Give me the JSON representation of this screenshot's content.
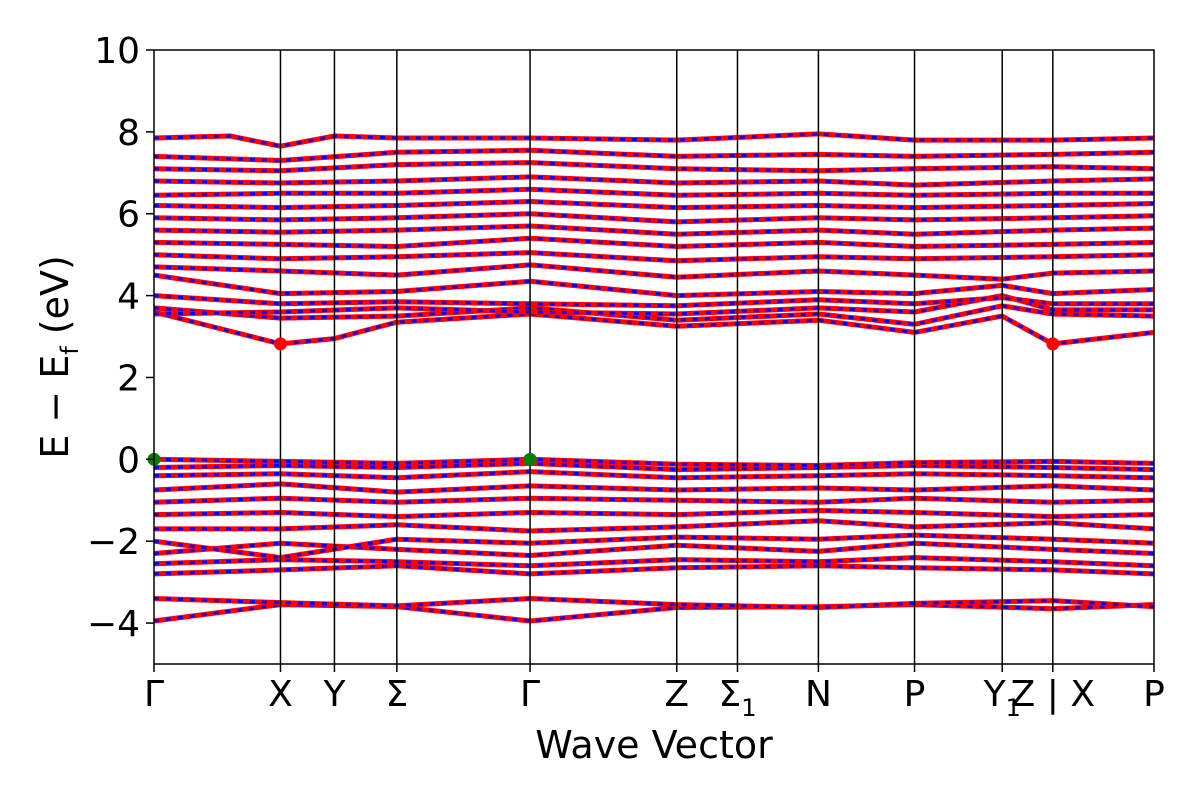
{
  "chart_data": {
    "type": "line",
    "title": "",
    "xlabel": "Wave Vector",
    "ylabel": "E − E",
    "ylabel_subscript": "f",
    "ylabel_unit": "(eV)",
    "ylim": [
      -5,
      10
    ],
    "y_ticks": [
      -4,
      -2,
      0,
      2,
      4,
      6,
      8,
      10
    ],
    "y_tick_labels": [
      "−4",
      "−2",
      "0",
      "2",
      "4",
      "6",
      "8",
      "10"
    ],
    "x_range": [
      0,
      5.93
    ],
    "k_points": [
      {
        "x": 0.0,
        "label": "Γ"
      },
      {
        "x": 0.75,
        "label": "X"
      },
      {
        "x": 1.07,
        "label": "Y"
      },
      {
        "x": 1.44,
        "label": "Σ"
      },
      {
        "x": 2.23,
        "label": "Γ"
      },
      {
        "x": 3.1,
        "label": "Z"
      },
      {
        "x": 3.46,
        "label": "Σ",
        "subscript": "1"
      },
      {
        "x": 3.94,
        "label": "N"
      },
      {
        "x": 4.51,
        "label": "P"
      },
      {
        "x": 5.03,
        "label": "Y",
        "subscript": "1"
      },
      {
        "x": 5.33,
        "label": "Z | X"
      },
      {
        "x": 5.93,
        "label": "P"
      }
    ],
    "grid": false,
    "legend": "none",
    "colors": {
      "spin_up": "#ff0000",
      "spin_down": "#0000ff",
      "vbm": "#008000",
      "cbm": "#ff0000"
    },
    "series": [
      {
        "values": [
          [
            0,
            -3.95
          ],
          [
            0.75,
            -3.55
          ],
          [
            1.44,
            -3.6
          ],
          [
            2.23,
            -3.95
          ],
          [
            3.1,
            -3.62
          ],
          [
            3.94,
            -3.6
          ],
          [
            4.51,
            -3.55
          ],
          [
            5.33,
            -3.65
          ],
          [
            5.93,
            -3.55
          ]
        ]
      },
      {
        "values": [
          [
            0,
            -3.4
          ],
          [
            0.75,
            -3.5
          ],
          [
            1.44,
            -3.58
          ],
          [
            2.23,
            -3.4
          ],
          [
            3.1,
            -3.55
          ],
          [
            3.94,
            -3.62
          ],
          [
            4.51,
            -3.52
          ],
          [
            5.33,
            -3.45
          ],
          [
            5.93,
            -3.6
          ]
        ]
      },
      {
        "values": [
          [
            0,
            -2.8
          ],
          [
            0.75,
            -2.7
          ],
          [
            1.44,
            -2.6
          ],
          [
            2.23,
            -2.8
          ],
          [
            3.1,
            -2.65
          ],
          [
            3.94,
            -2.6
          ],
          [
            4.51,
            -2.65
          ],
          [
            5.33,
            -2.7
          ],
          [
            5.93,
            -2.8
          ]
        ]
      },
      {
        "values": [
          [
            0,
            -2.55
          ],
          [
            0.75,
            -2.45
          ],
          [
            1.44,
            -2.5
          ],
          [
            2.23,
            -2.6
          ],
          [
            3.1,
            -2.45
          ],
          [
            3.94,
            -2.5
          ],
          [
            4.51,
            -2.4
          ],
          [
            5.33,
            -2.5
          ],
          [
            5.93,
            -2.6
          ]
        ]
      },
      {
        "values": [
          [
            0,
            -2.3
          ],
          [
            0.75,
            -2.05
          ],
          [
            1.44,
            -2.2
          ],
          [
            2.23,
            -2.35
          ],
          [
            3.1,
            -2.1
          ],
          [
            3.94,
            -2.25
          ],
          [
            4.51,
            -2.05
          ],
          [
            5.33,
            -2.2
          ],
          [
            5.93,
            -2.3
          ]
        ]
      },
      {
        "values": [
          [
            0,
            -2.0
          ],
          [
            0.75,
            -2.4
          ],
          [
            1.44,
            -1.95
          ],
          [
            2.23,
            -2.05
          ],
          [
            3.1,
            -1.9
          ],
          [
            3.94,
            -1.95
          ],
          [
            4.51,
            -1.85
          ],
          [
            5.33,
            -1.95
          ],
          [
            5.93,
            -2.05
          ]
        ]
      },
      {
        "values": [
          [
            0,
            -1.7
          ],
          [
            0.75,
            -1.7
          ],
          [
            1.44,
            -1.6
          ],
          [
            2.23,
            -1.75
          ],
          [
            3.1,
            -1.65
          ],
          [
            3.94,
            -1.5
          ],
          [
            4.51,
            -1.65
          ],
          [
            5.33,
            -1.55
          ],
          [
            5.93,
            -1.7
          ]
        ]
      },
      {
        "values": [
          [
            0,
            -1.35
          ],
          [
            0.75,
            -1.3
          ],
          [
            1.44,
            -1.4
          ],
          [
            2.23,
            -1.3
          ],
          [
            3.1,
            -1.35
          ],
          [
            3.94,
            -1.25
          ],
          [
            4.51,
            -1.3
          ],
          [
            5.33,
            -1.4
          ],
          [
            5.93,
            -1.35
          ]
        ]
      },
      {
        "values": [
          [
            0,
            -1.05
          ],
          [
            0.75,
            -0.95
          ],
          [
            1.44,
            -1.05
          ],
          [
            2.23,
            -0.95
          ],
          [
            3.1,
            -1.0
          ],
          [
            3.94,
            -1.05
          ],
          [
            4.51,
            -0.95
          ],
          [
            5.33,
            -1.05
          ],
          [
            5.93,
            -1.0
          ]
        ]
      },
      {
        "values": [
          [
            0,
            -0.75
          ],
          [
            0.75,
            -0.6
          ],
          [
            1.44,
            -0.8
          ],
          [
            2.23,
            -0.65
          ],
          [
            3.1,
            -0.75
          ],
          [
            3.94,
            -0.7
          ],
          [
            4.51,
            -0.75
          ],
          [
            5.33,
            -0.65
          ],
          [
            5.93,
            -0.75
          ]
        ]
      },
      {
        "values": [
          [
            0,
            -0.4
          ],
          [
            0.75,
            -0.35
          ],
          [
            1.44,
            -0.45
          ],
          [
            2.23,
            -0.3
          ],
          [
            3.1,
            -0.45
          ],
          [
            3.94,
            -0.4
          ],
          [
            4.51,
            -0.35
          ],
          [
            5.33,
            -0.4
          ],
          [
            5.93,
            -0.45
          ]
        ]
      },
      {
        "values": [
          [
            0,
            -0.2
          ],
          [
            0.75,
            -0.15
          ],
          [
            1.44,
            -0.2
          ],
          [
            2.23,
            -0.1
          ],
          [
            3.1,
            -0.25
          ],
          [
            3.94,
            -0.2
          ],
          [
            4.51,
            -0.15
          ],
          [
            5.33,
            -0.2
          ],
          [
            5.93,
            -0.25
          ]
        ]
      },
      {
        "values": [
          [
            0,
            0.0
          ],
          [
            0.75,
            -0.05
          ],
          [
            1.44,
            -0.1
          ],
          [
            2.23,
            0.0
          ],
          [
            3.1,
            -0.12
          ],
          [
            3.94,
            -0.15
          ],
          [
            4.51,
            -0.08
          ],
          [
            5.33,
            -0.05
          ],
          [
            5.93,
            -0.1
          ]
        ]
      },
      {
        "values": [
          [
            0,
            3.6
          ],
          [
            0.75,
            2.82
          ],
          [
            1.07,
            2.95
          ],
          [
            1.44,
            3.35
          ],
          [
            2.23,
            3.55
          ],
          [
            3.1,
            3.25
          ],
          [
            3.94,
            3.4
          ],
          [
            4.51,
            3.1
          ],
          [
            5.03,
            3.5
          ],
          [
            5.33,
            2.82
          ],
          [
            5.93,
            3.1
          ]
        ]
      },
      {
        "values": [
          [
            0,
            3.7
          ],
          [
            0.75,
            3.45
          ],
          [
            1.44,
            3.5
          ],
          [
            2.23,
            3.7
          ],
          [
            3.1,
            3.4
          ],
          [
            3.94,
            3.55
          ],
          [
            4.51,
            3.3
          ],
          [
            5.03,
            3.75
          ],
          [
            5.33,
            3.55
          ],
          [
            5.93,
            3.5
          ]
        ]
      },
      {
        "values": [
          [
            0,
            3.55
          ],
          [
            0.75,
            3.6
          ],
          [
            1.44,
            3.7
          ],
          [
            2.23,
            3.6
          ],
          [
            3.1,
            3.55
          ],
          [
            3.94,
            3.7
          ],
          [
            4.51,
            3.6
          ],
          [
            5.03,
            4.0
          ],
          [
            5.33,
            3.65
          ],
          [
            5.93,
            3.65
          ]
        ]
      },
      {
        "values": [
          [
            0,
            4.0
          ],
          [
            0.75,
            3.8
          ],
          [
            1.44,
            3.85
          ],
          [
            2.23,
            3.8
          ],
          [
            3.1,
            3.75
          ],
          [
            3.94,
            3.9
          ],
          [
            4.51,
            3.8
          ],
          [
            5.03,
            3.95
          ],
          [
            5.33,
            3.8
          ],
          [
            5.93,
            3.8
          ]
        ]
      },
      {
        "values": [
          [
            0,
            4.5
          ],
          [
            0.75,
            4.05
          ],
          [
            1.44,
            4.1
          ],
          [
            2.23,
            4.35
          ],
          [
            3.1,
            4.0
          ],
          [
            3.94,
            4.1
          ],
          [
            4.51,
            4.05
          ],
          [
            5.03,
            4.25
          ],
          [
            5.33,
            4.05
          ],
          [
            5.93,
            4.15
          ]
        ]
      },
      {
        "values": [
          [
            0,
            4.7
          ],
          [
            0.75,
            4.6
          ],
          [
            1.44,
            4.5
          ],
          [
            2.23,
            4.75
          ],
          [
            3.1,
            4.45
          ],
          [
            3.94,
            4.6
          ],
          [
            4.51,
            4.5
          ],
          [
            5.03,
            4.4
          ],
          [
            5.33,
            4.55
          ],
          [
            5.93,
            4.6
          ]
        ]
      },
      {
        "values": [
          [
            0,
            5.0
          ],
          [
            0.75,
            4.9
          ],
          [
            1.44,
            4.95
          ],
          [
            2.23,
            5.05
          ],
          [
            3.1,
            4.85
          ],
          [
            3.94,
            4.95
          ],
          [
            4.51,
            4.9
          ],
          [
            5.33,
            4.95
          ],
          [
            5.93,
            5.0
          ]
        ]
      },
      {
        "values": [
          [
            0,
            5.3
          ],
          [
            0.75,
            5.25
          ],
          [
            1.44,
            5.2
          ],
          [
            2.23,
            5.4
          ],
          [
            3.1,
            5.2
          ],
          [
            3.94,
            5.3
          ],
          [
            4.51,
            5.2
          ],
          [
            5.33,
            5.25
          ],
          [
            5.93,
            5.3
          ]
        ]
      },
      {
        "values": [
          [
            0,
            5.6
          ],
          [
            0.75,
            5.55
          ],
          [
            1.44,
            5.6
          ],
          [
            2.23,
            5.7
          ],
          [
            3.1,
            5.5
          ],
          [
            3.94,
            5.6
          ],
          [
            4.51,
            5.5
          ],
          [
            5.33,
            5.6
          ],
          [
            5.93,
            5.65
          ]
        ]
      },
      {
        "values": [
          [
            0,
            5.9
          ],
          [
            0.75,
            5.85
          ],
          [
            1.44,
            5.9
          ],
          [
            2.23,
            6.0
          ],
          [
            3.1,
            5.8
          ],
          [
            3.94,
            5.9
          ],
          [
            4.51,
            5.85
          ],
          [
            5.33,
            5.9
          ],
          [
            5.93,
            5.95
          ]
        ]
      },
      {
        "values": [
          [
            0,
            6.2
          ],
          [
            0.75,
            6.15
          ],
          [
            1.44,
            6.2
          ],
          [
            2.23,
            6.3
          ],
          [
            3.1,
            6.15
          ],
          [
            3.94,
            6.2
          ],
          [
            4.51,
            6.15
          ],
          [
            5.33,
            6.2
          ],
          [
            5.93,
            6.25
          ]
        ]
      },
      {
        "values": [
          [
            0,
            6.45
          ],
          [
            0.75,
            6.5
          ],
          [
            1.44,
            6.5
          ],
          [
            2.23,
            6.6
          ],
          [
            3.1,
            6.45
          ],
          [
            3.94,
            6.5
          ],
          [
            4.51,
            6.45
          ],
          [
            5.33,
            6.5
          ],
          [
            5.93,
            6.5
          ]
        ]
      },
      {
        "values": [
          [
            0,
            6.8
          ],
          [
            0.75,
            6.75
          ],
          [
            1.44,
            6.8
          ],
          [
            2.23,
            6.9
          ],
          [
            3.1,
            6.75
          ],
          [
            3.94,
            6.8
          ],
          [
            4.51,
            6.7
          ],
          [
            5.33,
            6.8
          ],
          [
            5.93,
            6.85
          ]
        ]
      },
      {
        "values": [
          [
            0,
            7.1
          ],
          [
            0.75,
            7.05
          ],
          [
            1.44,
            7.2
          ],
          [
            2.23,
            7.25
          ],
          [
            3.1,
            7.1
          ],
          [
            3.94,
            7.05
          ],
          [
            4.51,
            7.1
          ],
          [
            5.33,
            7.15
          ],
          [
            5.93,
            7.1
          ]
        ]
      },
      {
        "values": [
          [
            0,
            7.4
          ],
          [
            0.75,
            7.3
          ],
          [
            1.44,
            7.5
          ],
          [
            2.23,
            7.55
          ],
          [
            3.1,
            7.4
          ],
          [
            3.94,
            7.45
          ],
          [
            4.51,
            7.4
          ],
          [
            5.33,
            7.45
          ],
          [
            5.93,
            7.5
          ]
        ]
      },
      {
        "values": [
          [
            0,
            7.85
          ],
          [
            0.45,
            7.9
          ],
          [
            0.75,
            7.65
          ],
          [
            1.07,
            7.9
          ],
          [
            1.44,
            7.85
          ],
          [
            2.23,
            7.85
          ],
          [
            3.1,
            7.8
          ],
          [
            3.94,
            7.95
          ],
          [
            4.51,
            7.8
          ],
          [
            5.33,
            7.8
          ],
          [
            5.93,
            7.85
          ]
        ]
      }
    ],
    "markers": [
      {
        "x": 0.0,
        "y": 0.0,
        "color": "#008000"
      },
      {
        "x": 2.23,
        "y": 0.0,
        "color": "#008000"
      },
      {
        "x": 0.75,
        "y": 2.82,
        "color": "#ff0000"
      },
      {
        "x": 5.33,
        "y": 2.82,
        "color": "#ff0000"
      }
    ]
  }
}
